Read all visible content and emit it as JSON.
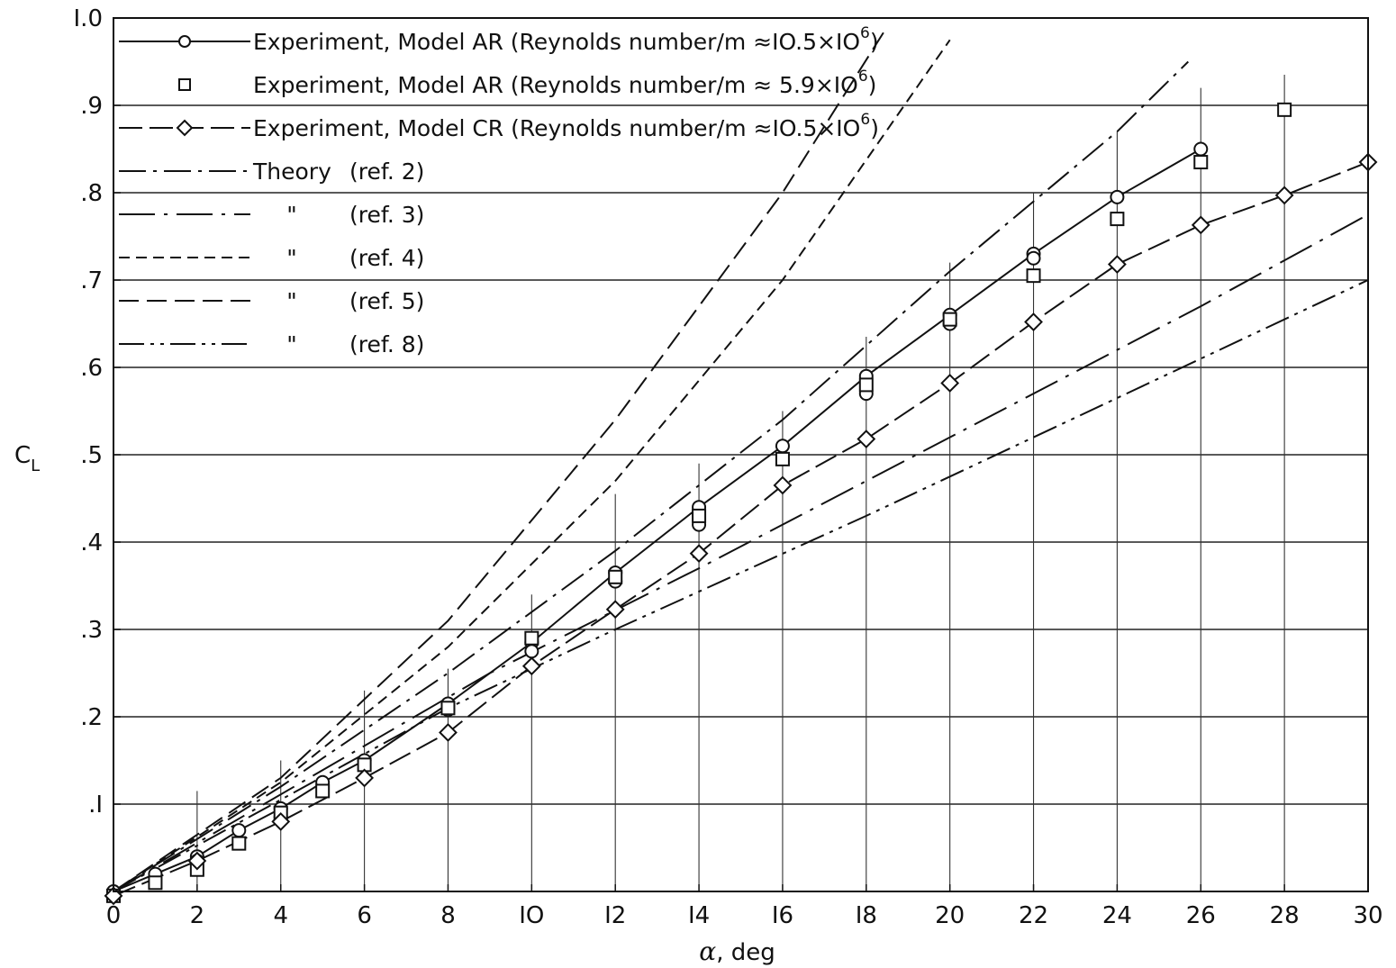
{
  "chart_data": {
    "type": "line",
    "title": "",
    "xlabel_symbol": "α",
    "xlabel_unit": ", deg",
    "ylabel_main": "C",
    "ylabel_sub": "L",
    "xlim": [
      0,
      30
    ],
    "ylim": [
      0,
      1.0
    ],
    "x_ticks": [
      0,
      2,
      4,
      6,
      8,
      10,
      12,
      14,
      16,
      18,
      20,
      22,
      24,
      26,
      28,
      30
    ],
    "x_tick_labels": [
      "0",
      "2",
      "4",
      "6",
      "8",
      "IO",
      "I2",
      "I4",
      "I6",
      "I8",
      "20",
      "22",
      "24",
      "26",
      "28",
      "30"
    ],
    "y_ticks": [
      0.1,
      0.2,
      0.3,
      0.4,
      0.5,
      0.6,
      0.7,
      0.8,
      0.9,
      1.0
    ],
    "y_tick_labels": [
      ".I",
      ".2",
      ".3",
      ".4",
      ".5",
      ".6",
      ".7",
      ".8",
      ".9",
      "I.0"
    ],
    "grid": "horizontal",
    "legend_position": "top-left",
    "series": [
      {
        "name": "Experiment, Model AR (Reynolds number/m ≈10.5×10⁶)",
        "legend_text": "Experiment, Model AR (Reynolds number/m ≈IO.5×IO",
        "legend_sup": "6",
        "legend_close": ")",
        "kind": "experiment",
        "marker": "circle",
        "line": "solid",
        "points": [
          [
            0,
            0.0
          ],
          [
            1,
            0.02
          ],
          [
            2,
            0.04
          ],
          [
            3,
            0.07
          ],
          [
            4,
            0.095
          ],
          [
            5,
            0.125
          ],
          [
            6,
            0.15
          ],
          [
            8,
            0.215
          ],
          [
            10,
            0.285
          ],
          [
            12,
            0.365
          ],
          [
            14,
            0.44
          ],
          [
            16,
            0.51
          ],
          [
            18,
            0.59
          ],
          [
            20,
            0.66
          ],
          [
            22,
            0.73
          ],
          [
            24,
            0.795
          ],
          [
            26,
            0.85
          ]
        ],
        "extra_points": [
          [
            2,
            0.035
          ],
          [
            4,
            0.085
          ],
          [
            8,
            0.208
          ],
          [
            10,
            0.275
          ],
          [
            12,
            0.355
          ],
          [
            14,
            0.42
          ],
          [
            18,
            0.57
          ],
          [
            20,
            0.65
          ],
          [
            22,
            0.725
          ]
        ]
      },
      {
        "name": "Experiment, Model AR (Reynolds number/m ≈ 5.9×10⁶)",
        "legend_text": "Experiment, Model AR (Reynolds number/m ≈ 5.9×IO",
        "legend_sup": "6",
        "legend_close": ")",
        "kind": "experiment",
        "marker": "square",
        "line": "none",
        "points": [
          [
            0,
            -0.005
          ],
          [
            1,
            0.01
          ],
          [
            2,
            0.025
          ],
          [
            3,
            0.055
          ],
          [
            4,
            0.09
          ],
          [
            5,
            0.115
          ],
          [
            6,
            0.145
          ],
          [
            8,
            0.21
          ],
          [
            10,
            0.29
          ],
          [
            12,
            0.36
          ],
          [
            14,
            0.43
          ],
          [
            16,
            0.495
          ],
          [
            18,
            0.58
          ],
          [
            20,
            0.655
          ],
          [
            22,
            0.705
          ],
          [
            24,
            0.77
          ],
          [
            26,
            0.835
          ],
          [
            28,
            0.895
          ]
        ]
      },
      {
        "name": "Experiment, Model CR (Reynolds number/m ≈10.5×10⁶)",
        "legend_text": "Experiment, Model CR (Reynolds number/m ≈IO.5×IO",
        "legend_sup": "6",
        "legend_close": ")",
        "kind": "experiment",
        "marker": "diamond",
        "line": "long-dash",
        "points": [
          [
            0,
            -0.005
          ],
          [
            2,
            0.035
          ],
          [
            4,
            0.08
          ],
          [
            6,
            0.13
          ],
          [
            8,
            0.182
          ],
          [
            10,
            0.258
          ],
          [
            12,
            0.323
          ],
          [
            14,
            0.387
          ],
          [
            16,
            0.465
          ],
          [
            18,
            0.518
          ],
          [
            20,
            0.582
          ],
          [
            22,
            0.652
          ],
          [
            24,
            0.718
          ],
          [
            26,
            0.763
          ],
          [
            28,
            0.797
          ],
          [
            30,
            0.835
          ]
        ]
      },
      {
        "name": "Theory (ref. 2)",
        "legend_text": "Theory",
        "legend_ref": "(ref. 2)",
        "kind": "theory",
        "line": "dash-dot",
        "points": [
          [
            0,
            0
          ],
          [
            4,
            0.12
          ],
          [
            8,
            0.25
          ],
          [
            12,
            0.39
          ],
          [
            16,
            0.54
          ],
          [
            20,
            0.71
          ],
          [
            24,
            0.87
          ],
          [
            25.7,
            0.95
          ]
        ]
      },
      {
        "name": "Theory (ref. 3)",
        "legend_text": "\"",
        "legend_ref": "(ref. 3)",
        "kind": "theory",
        "line": "dash-dot-wide",
        "points": [
          [
            0,
            0
          ],
          [
            9,
            0.25
          ],
          [
            14,
            0.37
          ],
          [
            20,
            0.52
          ],
          [
            26,
            0.67
          ],
          [
            30,
            0.775
          ]
        ]
      },
      {
        "name": "Theory (ref. 4)",
        "legend_text": "\"",
        "legend_ref": "(ref. 4)",
        "kind": "theory",
        "line": "short-dash",
        "points": [
          [
            0,
            0
          ],
          [
            4,
            0.125
          ],
          [
            8,
            0.28
          ],
          [
            12,
            0.47
          ],
          [
            16,
            0.7
          ],
          [
            20,
            0.975
          ]
        ]
      },
      {
        "name": "Theory (ref. 5)",
        "legend_text": "\"",
        "legend_ref": "(ref. 5)",
        "kind": "theory",
        "line": "dash",
        "points": [
          [
            0,
            0
          ],
          [
            4,
            0.13
          ],
          [
            8,
            0.31
          ],
          [
            12,
            0.54
          ],
          [
            16,
            0.8
          ],
          [
            18.5,
            0.99
          ]
        ]
      },
      {
        "name": "Theory (ref. 8)",
        "legend_text": "\"",
        "legend_ref": "(ref. 8)",
        "kind": "theory",
        "line": "dash-dot-dot",
        "points": [
          [
            0,
            0
          ],
          [
            8,
            0.21
          ],
          [
            12,
            0.3
          ],
          [
            18,
            0.43
          ],
          [
            24,
            0.565
          ],
          [
            30,
            0.7
          ]
        ]
      }
    ],
    "error_bars": [
      {
        "x": 2,
        "y0": 0.0,
        "y1": 0.115
      },
      {
        "x": 4,
        "y0": 0.0,
        "y1": 0.15
      },
      {
        "x": 6,
        "y0": 0.0,
        "y1": 0.23
      },
      {
        "x": 8,
        "y0": 0.0,
        "y1": 0.255
      },
      {
        "x": 10,
        "y0": 0.0,
        "y1": 0.34
      },
      {
        "x": 12,
        "y0": 0.0,
        "y1": 0.455
      },
      {
        "x": 14,
        "y0": 0.0,
        "y1": 0.49
      },
      {
        "x": 16,
        "y0": 0.0,
        "y1": 0.55
      },
      {
        "x": 18,
        "y0": 0.0,
        "y1": 0.635
      },
      {
        "x": 20,
        "y0": 0.0,
        "y1": 0.72
      },
      {
        "x": 22,
        "y0": 0.0,
        "y1": 0.8
      },
      {
        "x": 24,
        "y0": 0.0,
        "y1": 0.87
      },
      {
        "x": 26,
        "y0": 0.0,
        "y1": 0.92
      },
      {
        "x": 28,
        "y0": 0.0,
        "y1": 0.935
      }
    ]
  }
}
